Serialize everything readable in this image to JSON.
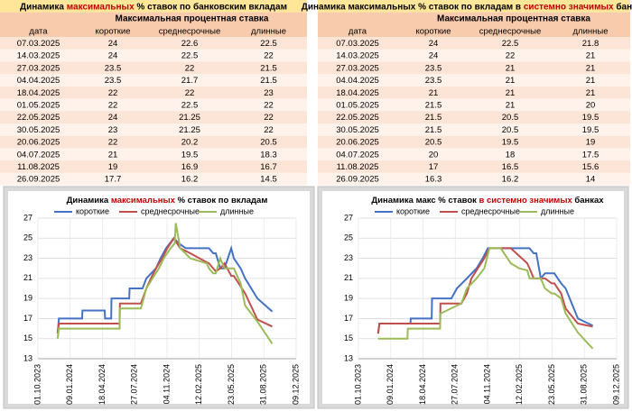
{
  "tables": [
    {
      "title": [
        {
          "text": "Динамика ",
          "color": "#000000"
        },
        {
          "text": "максимальных",
          "color": "#c00000"
        },
        {
          "text": " % ставок по банковским вкладам",
          "color": "#000000"
        }
      ],
      "header": "Максимальная процентная ставка",
      "columns": [
        "дата",
        "короткие",
        "среднесрочные",
        "длинные"
      ],
      "rows": [
        [
          "07.03.2025",
          24,
          22.6,
          22.5
        ],
        [
          "14.03.2025",
          24,
          22.5,
          22
        ],
        [
          "27.03.2025",
          23.5,
          22,
          21.5
        ],
        [
          "04.04.2025",
          23.5,
          21.7,
          21.5
        ],
        [
          "18.04.2025",
          22,
          22,
          23
        ],
        [
          "01.05.2025",
          22,
          22.5,
          22
        ],
        [
          "22.05.2025",
          24,
          21.25,
          22
        ],
        [
          "30.05.2025",
          23,
          21.25,
          22
        ],
        [
          "20.06.2025",
          22,
          20.2,
          20.5
        ],
        [
          "04.07.2025",
          21,
          19.5,
          18.3
        ],
        [
          "11.08.2025",
          19,
          16.9,
          16.7
        ],
        [
          "26.09.2025",
          17.7,
          16.2,
          14.5
        ]
      ]
    },
    {
      "title": [
        {
          "text": "Динамика максимальных % ставок по вкладам в ",
          "color": "#000000"
        },
        {
          "text": "системно значимых",
          "color": "#c00000"
        },
        {
          "text": " банках",
          "color": "#000000"
        }
      ],
      "header": "Максимальная процентная ставка",
      "columns": [
        "дата",
        "короткие",
        "среднесрочные",
        "длинные"
      ],
      "rows": [
        [
          "07.03.2025",
          24,
          22.5,
          21.8
        ],
        [
          "14.03.2025",
          24,
          22,
          21
        ],
        [
          "27.03.2025",
          23.5,
          21,
          21
        ],
        [
          "04.04.2025",
          23.5,
          21,
          21
        ],
        [
          "18.04.2025",
          21,
          21,
          21
        ],
        [
          "01.05.2025",
          21.5,
          21,
          20
        ],
        [
          "22.05.2025",
          21.5,
          20.5,
          19.5
        ],
        [
          "30.05.2025",
          21.5,
          20.5,
          19.5
        ],
        [
          "20.06.2025",
          20.5,
          19.5,
          19
        ],
        [
          "04.07.2025",
          20,
          18,
          17.5
        ],
        [
          "11.08.2025",
          17,
          16.5,
          15.6
        ],
        [
          "26.09.2025",
          16.3,
          16.2,
          14
        ]
      ]
    }
  ],
  "chart_data": [
    {
      "type": "line",
      "title": [
        {
          "text": "Динамика ",
          "color": "#000000"
        },
        {
          "text": "максимальных",
          "color": "#c00000"
        },
        {
          "text": " % ставок по вкладам",
          "color": "#000000"
        }
      ],
      "ylim": [
        13,
        27
      ],
      "yticks": [
        13,
        15,
        17,
        19,
        21,
        23,
        25,
        27
      ],
      "xlim": [
        "01.10.2023",
        "09.12.2025"
      ],
      "xticks": [
        "01.10.2023",
        "09.01.2024",
        "18.04.2024",
        "27.07.2024",
        "04.11.2024",
        "12.02.2025",
        "23.05.2025",
        "31.08.2025",
        "09.12.2025"
      ],
      "grid": true,
      "series": [
        {
          "name": "короткие",
          "color": "#4472c4",
          "x": [
            "01.12.2023",
            "05.12.2023",
            "15.02.2024",
            "16.02.2024",
            "25.04.2024",
            "26.04.2024",
            "15.05.2024",
            "16.05.2024",
            "10.07.2024",
            "11.07.2024",
            "20.08.2024",
            "01.09.2024",
            "01.10.2024",
            "15.10.2024",
            "01.11.2024",
            "25.11.2024",
            "10.12.2024",
            "01.01.2025",
            "07.03.2025",
            "14.03.2025",
            "27.03.2025",
            "04.04.2025",
            "18.04.2025",
            "01.05.2025",
            "22.05.2025",
            "30.05.2025",
            "20.06.2025",
            "04.07.2025",
            "11.08.2025",
            "26.09.2025"
          ],
          "values": [
            15.5,
            17,
            17,
            17.8,
            17.8,
            17,
            17,
            19,
            19,
            20,
            20,
            21,
            22,
            23,
            24,
            25,
            24.5,
            24,
            24,
            24,
            23.5,
            23.5,
            22,
            22,
            24,
            23,
            22,
            21,
            19,
            17.7
          ]
        },
        {
          "name": "среднесрочные",
          "color": "#c0504d",
          "x": [
            "01.12.2023",
            "05.12.2023",
            "10.06.2024",
            "11.06.2024",
            "15.08.2024",
            "01.09.2024",
            "15.09.2024",
            "01.10.2024",
            "20.10.2024",
            "05.11.2024",
            "25.11.2024",
            "15.12.2024",
            "15.01.2025",
            "07.03.2025",
            "14.03.2025",
            "27.03.2025",
            "04.04.2025",
            "18.04.2025",
            "01.05.2025",
            "22.05.2025",
            "30.05.2025",
            "20.06.2025",
            "04.07.2025",
            "11.08.2025",
            "26.09.2025"
          ],
          "values": [
            15.5,
            16.5,
            16.5,
            18.5,
            18.5,
            20,
            21,
            22,
            23,
            24,
            25,
            24,
            23.5,
            22.6,
            22.5,
            22,
            21.7,
            22,
            22.5,
            21.25,
            21.25,
            20.2,
            19.5,
            16.9,
            16.2
          ]
        },
        {
          "name": "длинные",
          "color": "#9bbb59",
          "x": [
            "01.12.2023",
            "05.12.2023",
            "10.06.2024",
            "11.06.2024",
            "15.08.2024",
            "01.09.2024",
            "20.09.2024",
            "10.10.2024",
            "25.10.2024",
            "15.11.2024",
            "28.11.2024",
            "01.12.2024",
            "15.12.2024",
            "15.01.2025",
            "07.03.2025",
            "14.03.2025",
            "27.03.2025",
            "04.04.2025",
            "18.04.2025",
            "01.05.2025",
            "22.05.2025",
            "30.05.2025",
            "20.06.2025",
            "04.07.2025",
            "11.08.2025",
            "26.09.2025"
          ],
          "values": [
            15,
            16,
            16,
            18,
            18,
            20,
            21,
            22,
            23,
            24,
            24.5,
            26.5,
            24,
            23,
            22.5,
            22,
            21.5,
            21.5,
            23,
            22,
            22,
            22,
            20.5,
            18.3,
            16.7,
            14.5
          ]
        }
      ]
    },
    {
      "type": "line",
      "title": [
        {
          "text": "Динамика макс % ставок ",
          "color": "#000000"
        },
        {
          "text": "в системно значимых",
          "color": "#c00000"
        },
        {
          "text": " банках",
          "color": "#000000"
        }
      ],
      "ylim": [
        13,
        27
      ],
      "yticks": [
        13,
        15,
        17,
        19,
        21,
        23,
        25,
        27
      ],
      "xlim": [
        "01.10.2023",
        "09.12.2025"
      ],
      "xticks": [
        "01.10.2023",
        "09.01.2024",
        "18.04.2024",
        "27.07.2024",
        "04.11.2024",
        "12.02.2025",
        "23.05.2025",
        "31.08.2025",
        "09.12.2025"
      ],
      "grid": true,
      "series": [
        {
          "name": "короткие",
          "color": "#4472c4",
          "x": [
            "01.12.2023",
            "05.12.2023",
            "10.03.2024",
            "11.03.2024",
            "15.05.2024",
            "16.05.2024",
            "15.07.2024",
            "01.08.2024",
            "01.09.2024",
            "01.10.2024",
            "20.10.2024",
            "05.11.2024",
            "15.01.2025",
            "07.03.2025",
            "14.03.2025",
            "27.03.2025",
            "04.04.2025",
            "18.04.2025",
            "01.05.2025",
            "22.05.2025",
            "30.05.2025",
            "20.06.2025",
            "04.07.2025",
            "11.08.2025",
            "26.09.2025"
          ],
          "values": [
            15.5,
            16.5,
            16.5,
            17,
            17,
            19,
            19,
            20,
            21,
            22,
            23,
            24,
            24,
            24,
            24,
            23.5,
            23.5,
            21,
            21.5,
            21.5,
            21.5,
            20.5,
            20,
            17,
            16.3
          ]
        },
        {
          "name": "среднесрочные",
          "color": "#c0504d",
          "x": [
            "01.12.2023",
            "05.12.2023",
            "10.06.2024",
            "11.06.2024",
            "15.08.2024",
            "01.09.2024",
            "15.09.2024",
            "05.10.2024",
            "25.10.2024",
            "10.11.2024",
            "15.01.2025",
            "07.03.2025",
            "14.03.2025",
            "27.03.2025",
            "04.04.2025",
            "18.04.2025",
            "01.05.2025",
            "22.05.2025",
            "30.05.2025",
            "20.06.2025",
            "04.07.2025",
            "11.08.2025",
            "26.09.2025"
          ],
          "values": [
            15.5,
            16.5,
            16.5,
            18.5,
            18.5,
            19.5,
            21,
            22,
            23,
            24,
            24,
            22.5,
            22,
            21,
            21,
            21,
            21,
            20.5,
            20.5,
            19.5,
            18,
            16.5,
            16.2
          ]
        },
        {
          "name": "длинные",
          "color": "#9bbb59",
          "x": [
            "01.12.2023",
            "05.12.2023",
            "01.03.2024",
            "02.03.2024",
            "10.06.2024",
            "11.06.2024",
            "15.08.2024",
            "01.09.2024",
            "01.10.2024",
            "25.10.2024",
            "10.11.2024",
            "15.12.2024",
            "15.01.2025",
            "10.02.2025",
            "07.03.2025",
            "14.03.2025",
            "27.03.2025",
            "04.04.2025",
            "18.04.2025",
            "01.05.2025",
            "22.05.2025",
            "30.05.2025",
            "20.06.2025",
            "04.07.2025",
            "11.08.2025",
            "26.09.2025"
          ],
          "values": [
            15,
            15,
            15,
            16,
            16,
            17.5,
            18.5,
            20,
            21,
            22,
            24,
            24,
            22.5,
            22,
            21.8,
            21,
            21,
            21,
            21,
            20,
            19.5,
            19.5,
            19,
            17.5,
            15.6,
            14
          ]
        }
      ]
    }
  ]
}
